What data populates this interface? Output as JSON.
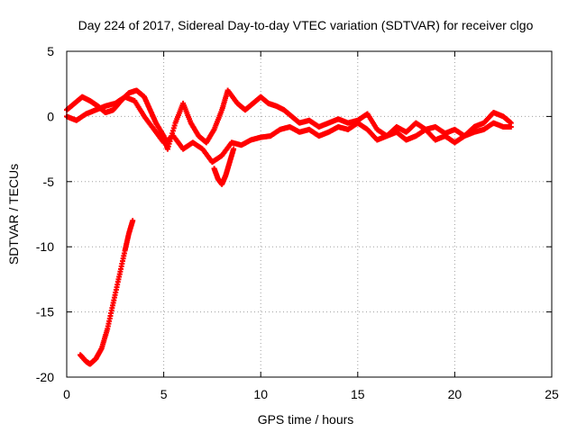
{
  "chart_data": {
    "type": "scatter",
    "title": "Day 224 of 2017, Sidereal Day-to-day VTEC variation (SDTVAR) for receiver clgo",
    "xlabel": "GPS time / hours",
    "ylabel": "SDTVAR / TECUs",
    "xlim": [
      0,
      25
    ],
    "ylim": [
      -20,
      5
    ],
    "xticks": [
      0,
      5,
      10,
      15,
      20,
      25
    ],
    "yticks": [
      5,
      0,
      -5,
      -10,
      -15,
      -20
    ],
    "grid": true,
    "marker_color": "#ff0000",
    "series": [
      {
        "name": "main-track",
        "x": [
          0,
          0.4,
          0.8,
          1.2,
          1.6,
          2.0,
          2.4,
          2.8,
          3.2,
          3.6,
          4.0,
          4.3,
          4.6,
          5.0,
          5.2,
          5.6,
          6.0,
          6.4,
          6.8,
          7.2,
          7.6,
          8.0,
          8.3,
          8.8,
          9.2,
          9.6,
          10.0,
          10.4,
          10.8,
          11.2,
          11.6,
          12.0,
          12.5,
          13.0,
          13.5,
          14.0,
          14.5,
          15.0,
          15.5,
          16.0,
          16.5,
          17.0,
          17.5,
          18.0,
          18.5,
          19.0,
          19.5,
          20.0,
          20.5,
          21.0,
          21.5,
          22.0,
          22.5,
          22.9
        ],
        "y": [
          0.5,
          1.0,
          1.5,
          1.2,
          0.8,
          0.3,
          0.5,
          1.2,
          1.8,
          2.0,
          1.5,
          0.5,
          -0.5,
          -1.5,
          -2.5,
          -0.5,
          1.0,
          -0.5,
          -1.5,
          -2.0,
          -1.0,
          0.5,
          2.0,
          1.0,
          0.5,
          1.0,
          1.5,
          1.0,
          0.8,
          0.5,
          0.0,
          -0.5,
          -0.3,
          -0.8,
          -0.5,
          -0.2,
          -0.5,
          -0.3,
          0.2,
          -1.0,
          -1.5,
          -0.8,
          -1.2,
          -0.5,
          -1.0,
          -0.8,
          -1.3,
          -1.0,
          -1.5,
          -0.8,
          -0.5,
          0.3,
          0.0,
          -0.5
        ]
      },
      {
        "name": "lower-track",
        "x": [
          0,
          0.5,
          1.0,
          1.5,
          2.0,
          2.5,
          3.0,
          3.5,
          4.0,
          4.5,
          5.0,
          5.5,
          6.0,
          6.5,
          7.0,
          7.5,
          8.0,
          8.5,
          9.0,
          9.5,
          10.0,
          10.5,
          11.0,
          11.5,
          12.0,
          12.5,
          13.0,
          13.5,
          14.0,
          14.5,
          15.0,
          15.5,
          16.0,
          16.5,
          17.0,
          17.5,
          18.0,
          18.5,
          19.0,
          19.5,
          20.0,
          20.5,
          21.0,
          21.5,
          22.0,
          22.5,
          22.9
        ],
        "y": [
          0.0,
          -0.3,
          0.2,
          0.5,
          0.8,
          1.0,
          1.5,
          1.2,
          0.0,
          -1.0,
          -2.0,
          -1.5,
          -2.5,
          -2.0,
          -2.5,
          -3.5,
          -3.0,
          -2.0,
          -2.2,
          -1.8,
          -1.6,
          -1.5,
          -1.0,
          -0.8,
          -1.2,
          -1.0,
          -1.5,
          -1.2,
          -0.8,
          -1.0,
          -0.5,
          -1.0,
          -1.8,
          -1.5,
          -1.2,
          -1.8,
          -1.5,
          -1.0,
          -1.8,
          -1.5,
          -2.0,
          -1.5,
          -1.2,
          -1.0,
          -0.5,
          -0.8,
          -0.8
        ]
      },
      {
        "name": "dip-near-8h",
        "x": [
          7.6,
          7.8,
          8.0,
          8.2,
          8.4,
          8.6
        ],
        "y": [
          -4.0,
          -4.8,
          -5.2,
          -4.5,
          -3.5,
          -2.5
        ]
      },
      {
        "name": "early-descent",
        "x": [
          0.7,
          1.0,
          1.2,
          1.5,
          1.8,
          2.1,
          2.4,
          2.7,
          3.0,
          3.2,
          3.4
        ],
        "y": [
          -18.3,
          -18.8,
          -19.0,
          -18.6,
          -17.8,
          -16.3,
          -14.3,
          -12.3,
          -10.3,
          -9.0,
          -8.0
        ]
      }
    ]
  }
}
